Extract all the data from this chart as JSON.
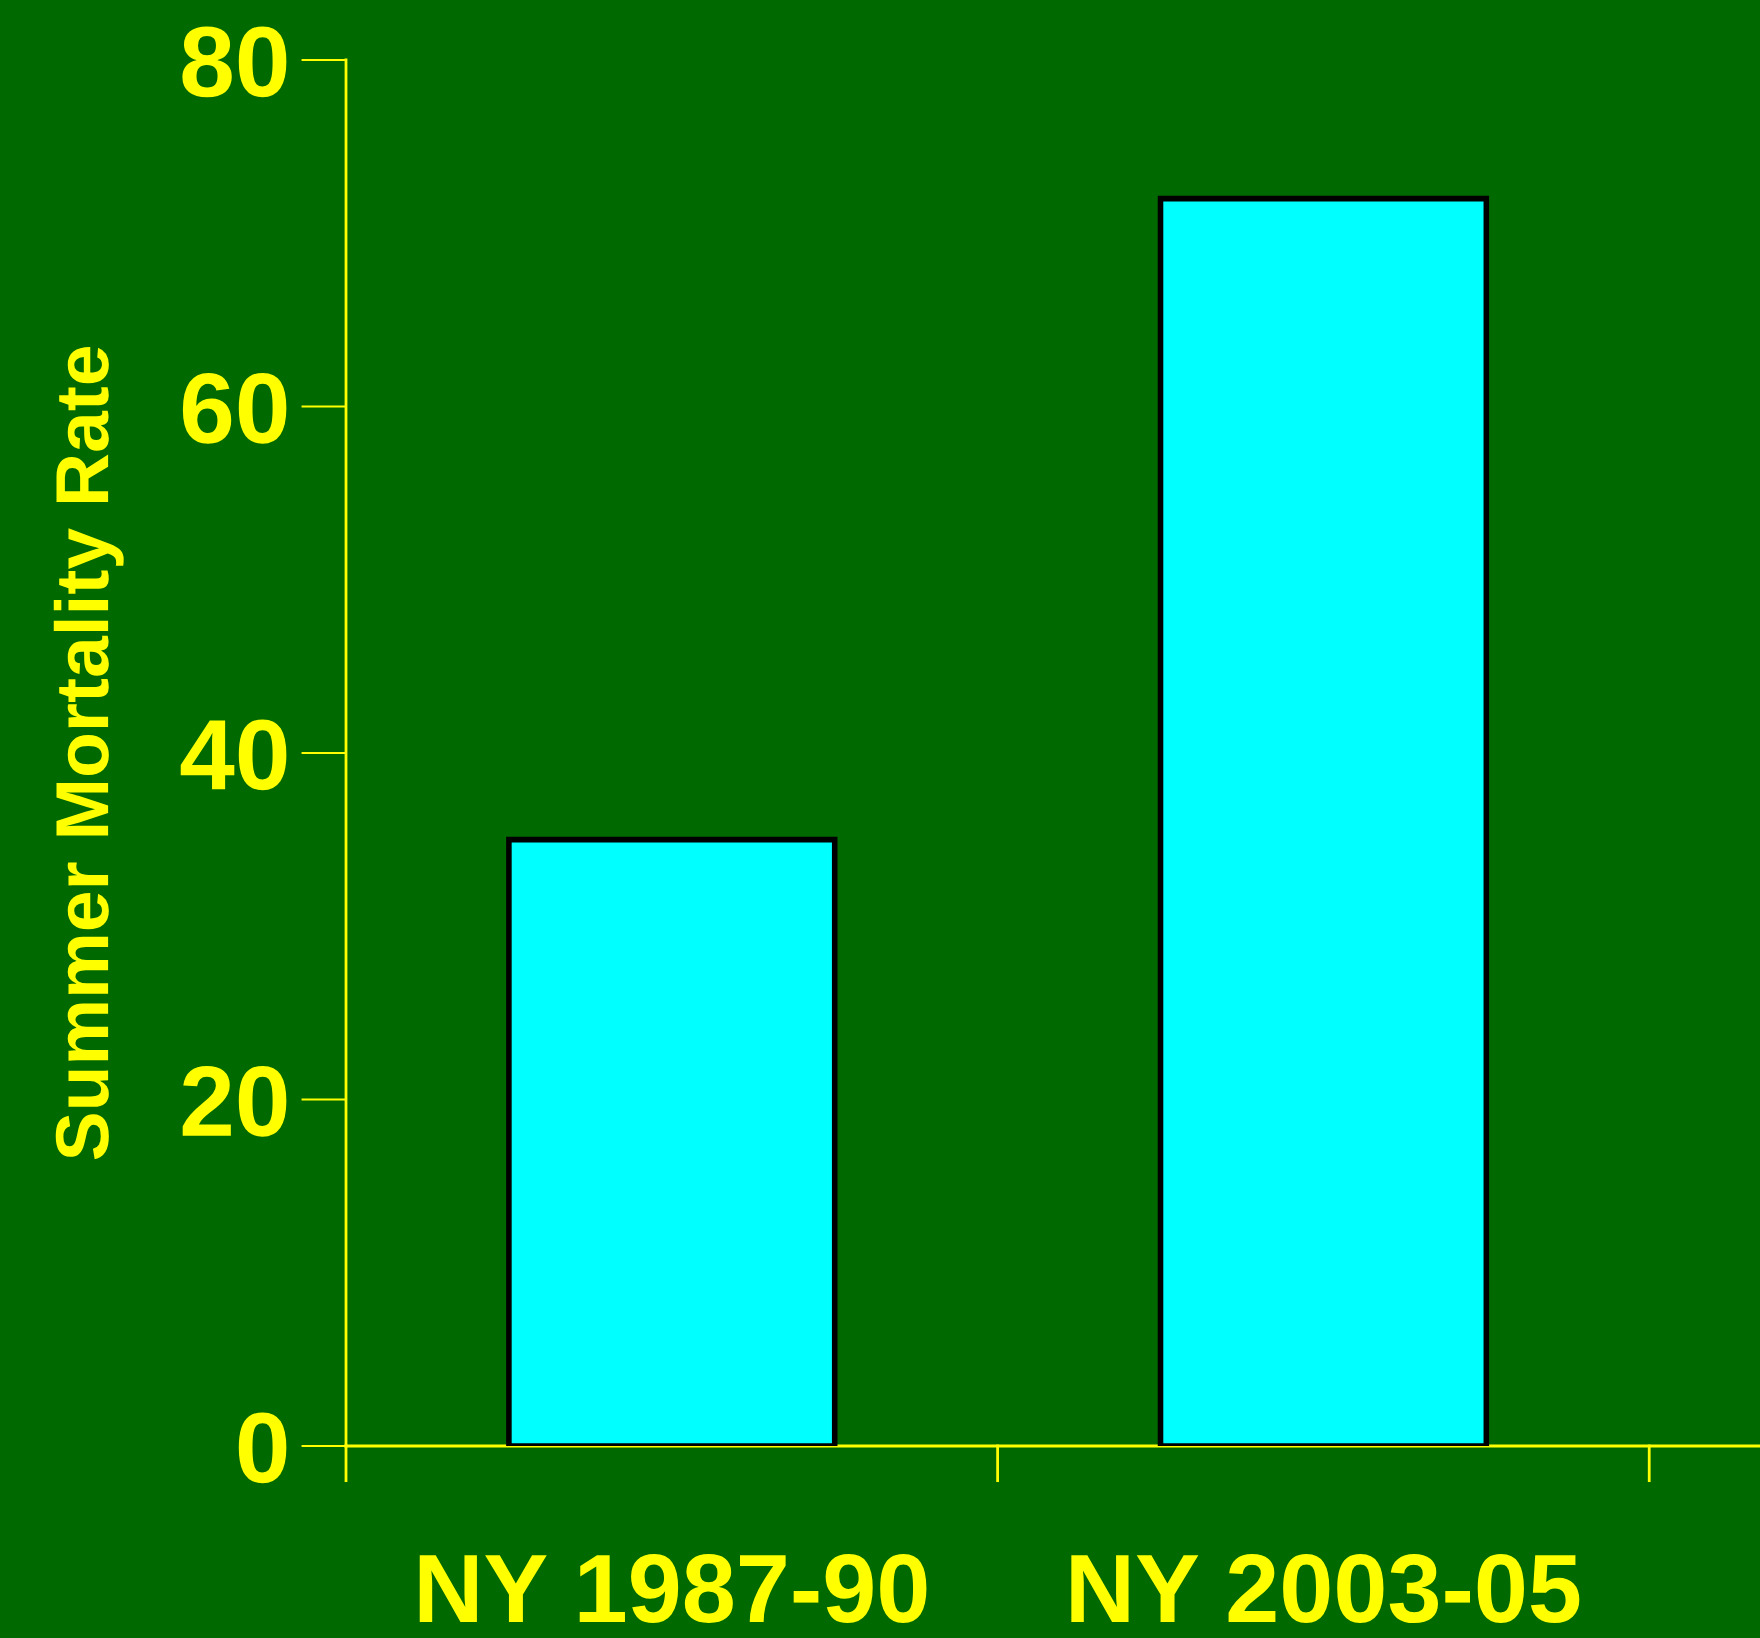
{
  "chart_data": {
    "type": "bar",
    "ylabel": "Summer Mortality Rate",
    "categories": [
      "NY 1987-90",
      "NY 2003-05"
    ],
    "values": [
      35,
      72
    ],
    "color": "#00ffff",
    "ylim": [
      0,
      80
    ],
    "yticks": [
      0,
      20,
      40,
      60,
      80
    ],
    "grid": false
  }
}
